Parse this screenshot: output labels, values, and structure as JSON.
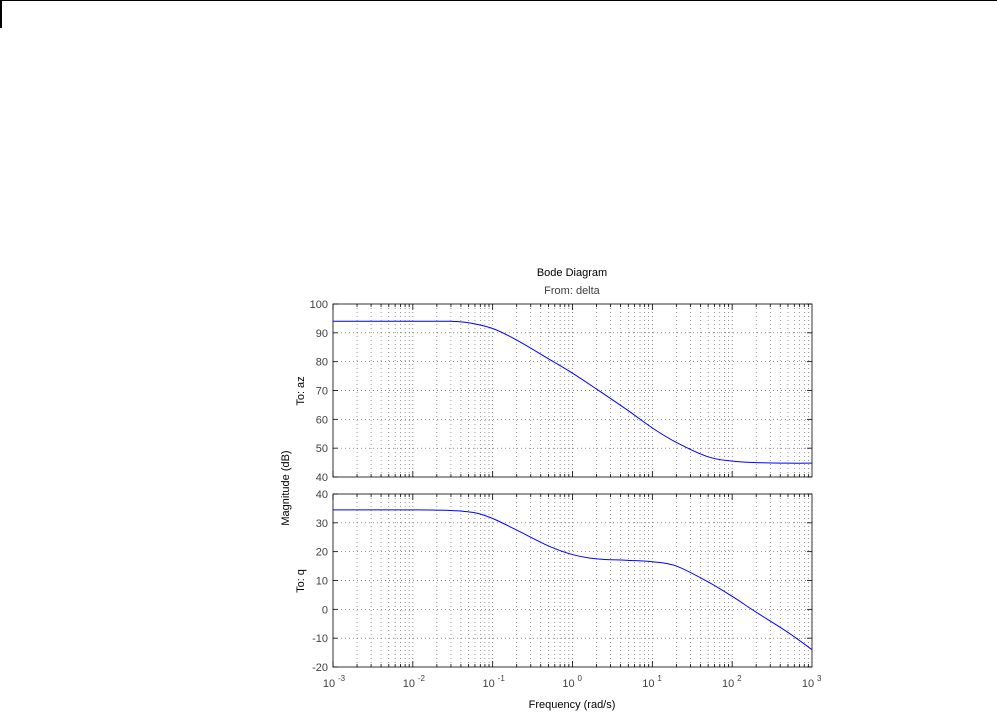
{
  "chart_data": {
    "type": "line",
    "title": "Bode Diagram",
    "subtitle": "From: delta",
    "xlabel": "Frequency  (rad/s)",
    "ylabel": "Magnitude (dB)",
    "x_scale": "log",
    "xlim": [
      0.001,
      1000
    ],
    "x_tick_labels": [
      {
        "base": "10",
        "exp": "-3"
      },
      {
        "base": "10",
        "exp": "-2"
      },
      {
        "base": "10",
        "exp": "-1"
      },
      {
        "base": "10",
        "exp": "0"
      },
      {
        "base": "10",
        "exp": "1"
      },
      {
        "base": "10",
        "exp": "2"
      },
      {
        "base": "10",
        "exp": "3"
      }
    ],
    "grid": true,
    "line_color": "#0000ff",
    "axes_color": "#000000",
    "grid_color": "#555555",
    "label_color": "#404040",
    "panels": [
      {
        "ylabel": "To: az",
        "ylim": [
          40,
          100
        ],
        "yticks": [
          40,
          50,
          60,
          70,
          80,
          90,
          100
        ],
        "series": [
          {
            "x": [
              0.001,
              0.01,
              0.03,
              0.05,
              0.1,
              0.2,
              0.5,
              1,
              2,
              5,
              10,
              20,
              50,
              100,
              200,
              500,
              1000
            ],
            "y": [
              94,
              94,
              94,
              93.5,
              91.5,
              87.5,
              81,
              76,
              70.5,
              63,
              57,
              52,
              47,
              45.5,
              45,
              44.8,
              44.8
            ]
          }
        ]
      },
      {
        "ylabel": "To: q",
        "ylim": [
          -20,
          40
        ],
        "yticks": [
          -20,
          -10,
          0,
          10,
          20,
          30,
          40
        ],
        "series": [
          {
            "x": [
              0.001,
              0.01,
              0.03,
              0.06,
              0.1,
              0.2,
              0.5,
              1,
              2,
              5,
              10,
              20,
              50,
              100,
              200,
              500,
              1000
            ],
            "y": [
              34.5,
              34.5,
              34.3,
              33.5,
              31.5,
              27.5,
              22,
              19,
              17.5,
              17,
              16.5,
              15,
              9.5,
              4.5,
              -1,
              -8,
              -14
            ]
          }
        ]
      }
    ]
  }
}
